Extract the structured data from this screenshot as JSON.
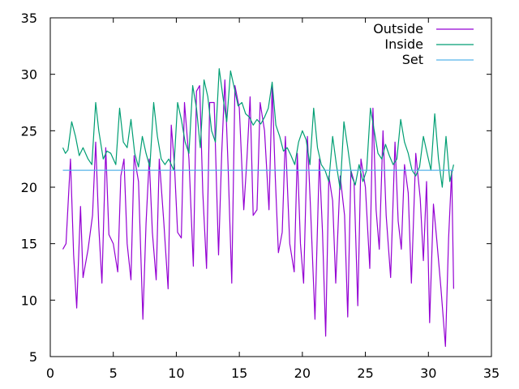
{
  "chart_data": {
    "type": "line",
    "title": "",
    "xlabel": "",
    "ylabel": "",
    "xlim": [
      0,
      35
    ],
    "ylim": [
      5,
      35
    ],
    "xticks": [
      0,
      5,
      10,
      15,
      20,
      25,
      30,
      35
    ],
    "yticks": [
      5,
      10,
      15,
      20,
      25,
      30,
      35
    ],
    "grid": false,
    "legend_position": "top-right",
    "series": [
      {
        "name": "Outside",
        "color": "#9400d3",
        "x": [
          1.0,
          1.25,
          1.6,
          1.85,
          2.1,
          2.4,
          2.6,
          3.0,
          3.35,
          3.6,
          3.85,
          4.1,
          4.4,
          4.65,
          5.0,
          5.35,
          5.6,
          5.85,
          6.1,
          6.4,
          6.65,
          7.0,
          7.35,
          7.6,
          7.85,
          8.1,
          8.4,
          8.65,
          9.0,
          9.35,
          9.6,
          9.85,
          10.1,
          10.4,
          10.65,
          11.0,
          11.35,
          11.6,
          11.85,
          12.1,
          12.4,
          12.65,
          13.0,
          13.35,
          13.6,
          13.85,
          14.1,
          14.4,
          14.65,
          15.0,
          15.35,
          15.6,
          15.85,
          16.1,
          16.4,
          16.65,
          17.0,
          17.35,
          17.6,
          17.85,
          18.1,
          18.4,
          18.65,
          19.0,
          19.35,
          19.6,
          19.85,
          20.1,
          20.4,
          20.65,
          21.0,
          21.35,
          21.6,
          21.85,
          22.1,
          22.4,
          22.65,
          23.0,
          23.35,
          23.6,
          23.85,
          24.1,
          24.4,
          24.65,
          25.0,
          25.35,
          25.6,
          25.85,
          26.1,
          26.4,
          26.65,
          27.0,
          27.35,
          27.6,
          27.85,
          28.1,
          28.4,
          28.65,
          29.0,
          29.35,
          29.6,
          29.85,
          30.1,
          30.4,
          30.65,
          31.0,
          31.35,
          31.6,
          31.85,
          32.0
        ],
        "y": [
          14.5,
          15.0,
          22.5,
          14.0,
          9.3,
          18.3,
          12.0,
          14.5,
          17.5,
          24.0,
          16.5,
          11.5,
          23.5,
          15.8,
          15.0,
          12.5,
          21.0,
          22.5,
          15.0,
          11.8,
          22.8,
          20.5,
          8.3,
          16.8,
          22.5,
          16.0,
          11.8,
          22.5,
          17.0,
          11.0,
          25.5,
          22.0,
          16.0,
          15.5,
          27.5,
          22.5,
          13.0,
          28.5,
          29.0,
          19.5,
          12.8,
          27.5,
          27.5,
          14.0,
          23.0,
          29.5,
          22.0,
          11.5,
          29.0,
          27.0,
          18.0,
          22.5,
          28.0,
          17.5,
          18.0,
          27.5,
          25.0,
          18.0,
          29.0,
          21.0,
          14.2,
          16.0,
          24.5,
          15.0,
          12.5,
          23.0,
          15.0,
          11.5,
          24.5,
          18.0,
          8.3,
          22.5,
          16.0,
          6.8,
          21.0,
          18.8,
          11.5,
          21.0,
          17.5,
          8.5,
          21.5,
          20.5,
          9.5,
          22.5,
          20.0,
          12.8,
          27.0,
          18.0,
          14.5,
          25.0,
          17.5,
          12.0,
          24.0,
          17.0,
          14.5,
          22.0,
          19.5,
          11.5,
          23.0,
          19.0,
          13.5,
          20.5,
          8.0,
          18.5,
          15.5,
          11.0,
          5.9,
          15.5,
          21.5,
          11.0
        ]
      },
      {
        "name": "Inside",
        "color": "#009e73",
        "x": [
          1.0,
          1.2,
          1.4,
          1.7,
          2.0,
          2.3,
          2.6,
          3.0,
          3.3,
          3.6,
          3.85,
          4.2,
          4.5,
          4.8,
          5.2,
          5.5,
          5.8,
          6.1,
          6.4,
          6.7,
          7.0,
          7.3,
          7.6,
          7.9,
          8.2,
          8.5,
          8.8,
          9.1,
          9.4,
          9.8,
          10.1,
          10.4,
          10.7,
          11.0,
          11.3,
          11.6,
          11.9,
          12.2,
          12.5,
          12.8,
          13.1,
          13.4,
          13.7,
          14.0,
          14.3,
          14.6,
          14.9,
          15.2,
          15.5,
          15.8,
          16.1,
          16.4,
          16.7,
          17.0,
          17.3,
          17.6,
          17.9,
          18.2,
          18.5,
          18.8,
          19.1,
          19.4,
          19.7,
          20.0,
          20.3,
          20.6,
          20.9,
          21.2,
          21.5,
          21.8,
          22.1,
          22.4,
          22.7,
          23.0,
          23.3,
          23.6,
          23.9,
          24.2,
          24.5,
          24.8,
          25.1,
          25.4,
          25.7,
          26.0,
          26.3,
          26.6,
          26.9,
          27.2,
          27.5,
          27.8,
          28.1,
          28.4,
          28.7,
          29.0,
          29.3,
          29.6,
          29.9,
          30.2,
          30.5,
          30.8,
          31.1,
          31.4,
          31.7,
          32.0
        ],
        "y": [
          23.5,
          23.0,
          23.3,
          25.8,
          24.5,
          22.8,
          23.5,
          22.5,
          22.0,
          27.5,
          25.0,
          22.5,
          23.2,
          23.0,
          22.0,
          27.0,
          24.0,
          23.5,
          26.0,
          23.0,
          21.8,
          24.5,
          23.0,
          21.8,
          27.5,
          24.5,
          22.5,
          22.0,
          22.5,
          21.5,
          27.5,
          26.0,
          24.0,
          23.0,
          29.0,
          27.0,
          23.5,
          29.5,
          28.0,
          25.0,
          24.0,
          30.5,
          28.0,
          25.8,
          30.3,
          28.8,
          27.2,
          27.5,
          26.5,
          26.2,
          25.5,
          26.0,
          25.6,
          26.2,
          27.0,
          29.3,
          25.5,
          24.5,
          23.2,
          23.5,
          22.8,
          22.0,
          24.0,
          25.0,
          24.2,
          22.0,
          27.0,
          23.5,
          22.0,
          21.5,
          20.5,
          24.5,
          22.0,
          19.8,
          25.8,
          23.5,
          21.0,
          20.2,
          22.0,
          20.5,
          21.5,
          27.0,
          25.0,
          23.0,
          22.5,
          23.8,
          22.8,
          22.0,
          22.5,
          26.0,
          24.0,
          23.0,
          21.5,
          21.0,
          21.8,
          24.5,
          23.0,
          21.5,
          26.5,
          22.5,
          20.0,
          24.5,
          20.5,
          22.0
        ]
      },
      {
        "name": "Set",
        "color": "#56b4e9",
        "x": [
          1.0,
          32.0
        ],
        "y": [
          21.5,
          21.5
        ]
      }
    ]
  }
}
